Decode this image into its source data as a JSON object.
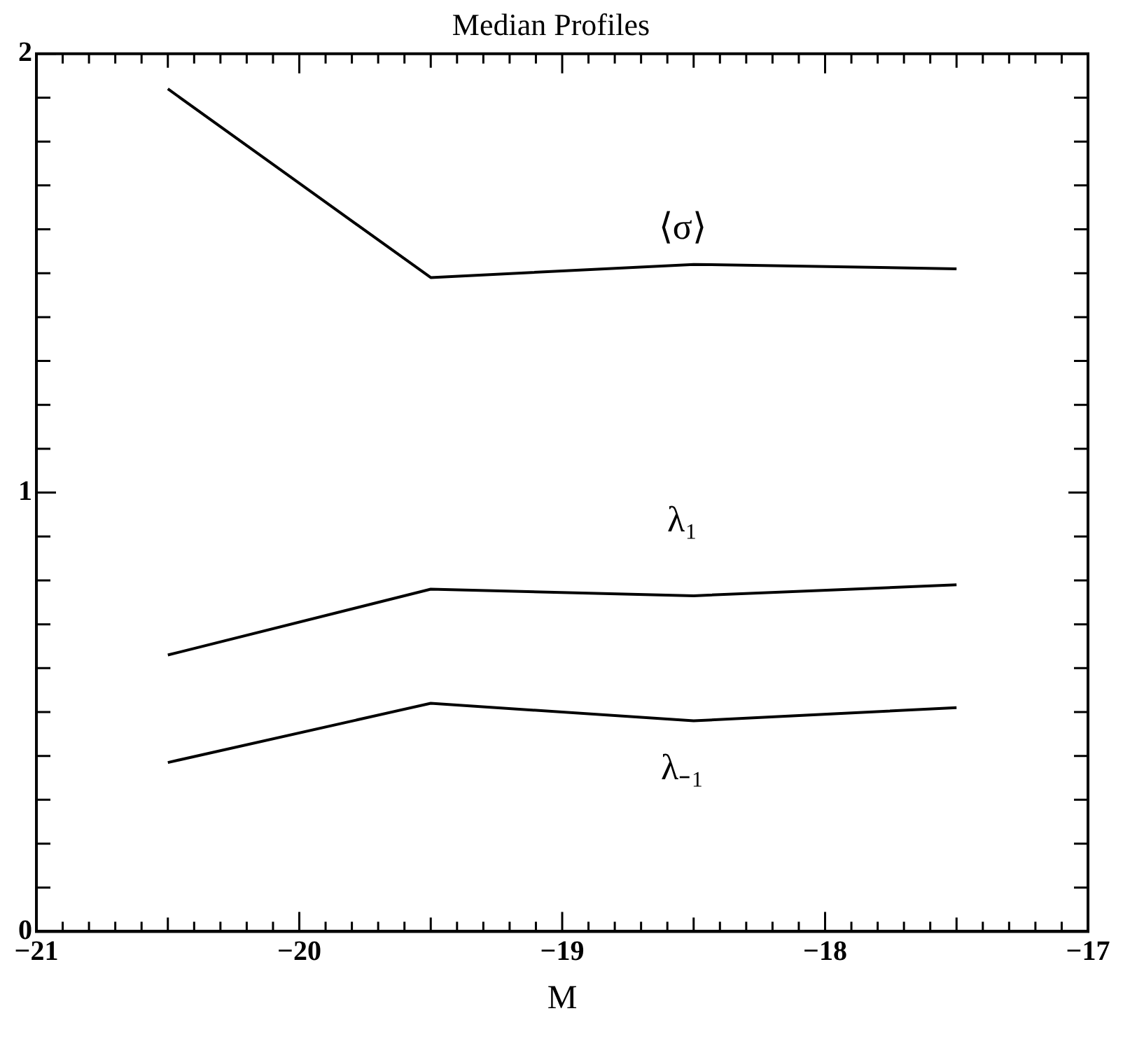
{
  "chart_data": {
    "type": "line",
    "title": "Median Profiles",
    "xlabel": "M",
    "x": [
      -20.5,
      -19.5,
      -18.5,
      -17.5
    ],
    "series": [
      {
        "name": "⟨σ⟩",
        "color": "#000000",
        "values": [
          1.92,
          1.49,
          1.52,
          1.51
        ]
      },
      {
        "name": "λ₁",
        "color": "#000000",
        "values": [
          0.63,
          0.78,
          0.765,
          0.79
        ]
      },
      {
        "name": "λ₋₁",
        "color": "#000000",
        "values": [
          0.385,
          0.52,
          0.48,
          0.51
        ]
      }
    ],
    "xlim": [
      -21,
      -17
    ],
    "xticks": [
      -21,
      -20,
      -19,
      -18,
      -17
    ],
    "ylim": [
      0,
      2
    ],
    "yticks": [
      0,
      1,
      2
    ],
    "grid": false,
    "legend": false,
    "marker": "none",
    "line_style": "solid"
  }
}
